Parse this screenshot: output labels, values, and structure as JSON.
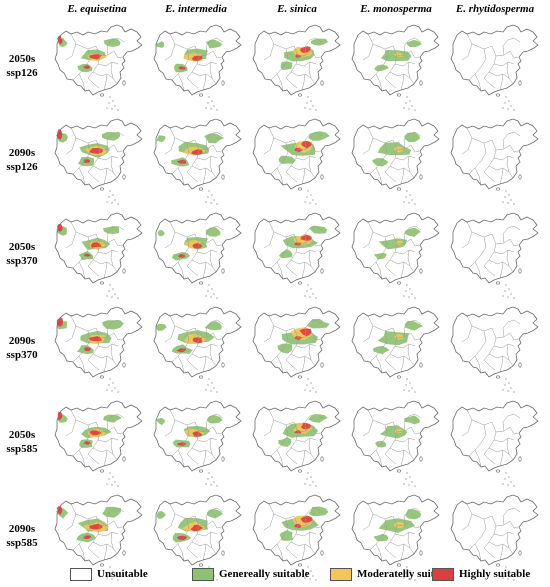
{
  "species": [
    "E. equisetina",
    "E. intermedia",
    "E. sinica",
    "E. monosperma",
    "E. rhytidosperma"
  ],
  "scenarios": [
    {
      "period": "2050s",
      "ssp": "ssp126"
    },
    {
      "period": "2090s",
      "ssp": "ssp126"
    },
    {
      "period": "2050s",
      "ssp": "ssp370"
    },
    {
      "period": "2090s",
      "ssp": "ssp370"
    },
    {
      "period": "2050s",
      "ssp": "ssp585"
    },
    {
      "period": "2090s",
      "ssp": "ssp585"
    }
  ],
  "legend": [
    {
      "label": "Unsuitable",
      "color": "#ffffff"
    },
    {
      "label": "Genereally suitable",
      "color": "#8fc073"
    },
    {
      "label": "Moderatelly suitable",
      "color": "#f2c65a"
    },
    {
      "label": "Highly suitable",
      "color": "#d94040"
    }
  ],
  "colors": {
    "outline": "#6b6b6b",
    "unsuitable": "#ffffff",
    "general": "#8fc073",
    "moderate": "#f2c65a",
    "high": "#d94040"
  }
}
